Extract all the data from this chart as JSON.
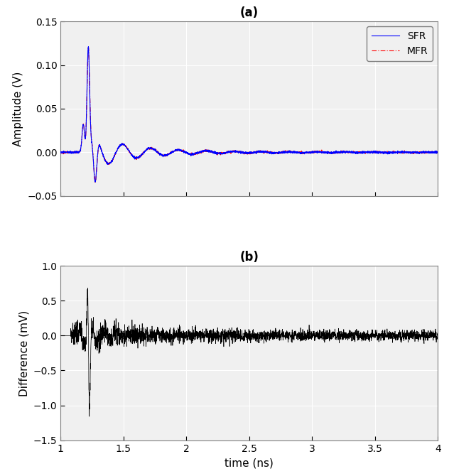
{
  "title_a": "(a)",
  "title_b": "(b)",
  "xlabel": "time (ns)",
  "ylabel_a": "Amplitude (V)",
  "ylabel_b": "Difference (mV)",
  "xlim": [
    1.0,
    4.0
  ],
  "ylim_a": [
    -0.05,
    0.15
  ],
  "ylim_b": [
    -1.5,
    1.0
  ],
  "yticks_a": [
    -0.05,
    0.0,
    0.05,
    0.1,
    0.15
  ],
  "yticks_b": [
    -1.5,
    -1.0,
    -0.5,
    0.0,
    0.5,
    1.0
  ],
  "xticks": [
    1.0,
    1.5,
    2.0,
    2.5,
    3.0,
    3.5,
    4.0
  ],
  "sfr_color": "#0000FF",
  "mfr_color": "#FF0000",
  "diff_color": "#000000",
  "bg_color": "#FFFFFF",
  "axes_bg": "#F0F0F0",
  "grid_color": "#FFFFFF",
  "spine_color": "#808080",
  "legend_sfr": "SFR",
  "legend_mfr": "MFR",
  "sfr_linewidth": 0.8,
  "mfr_linewidth": 0.8,
  "diff_linewidth": 0.5,
  "figsize": [
    6.32,
    6.7
  ],
  "dpi": 100
}
